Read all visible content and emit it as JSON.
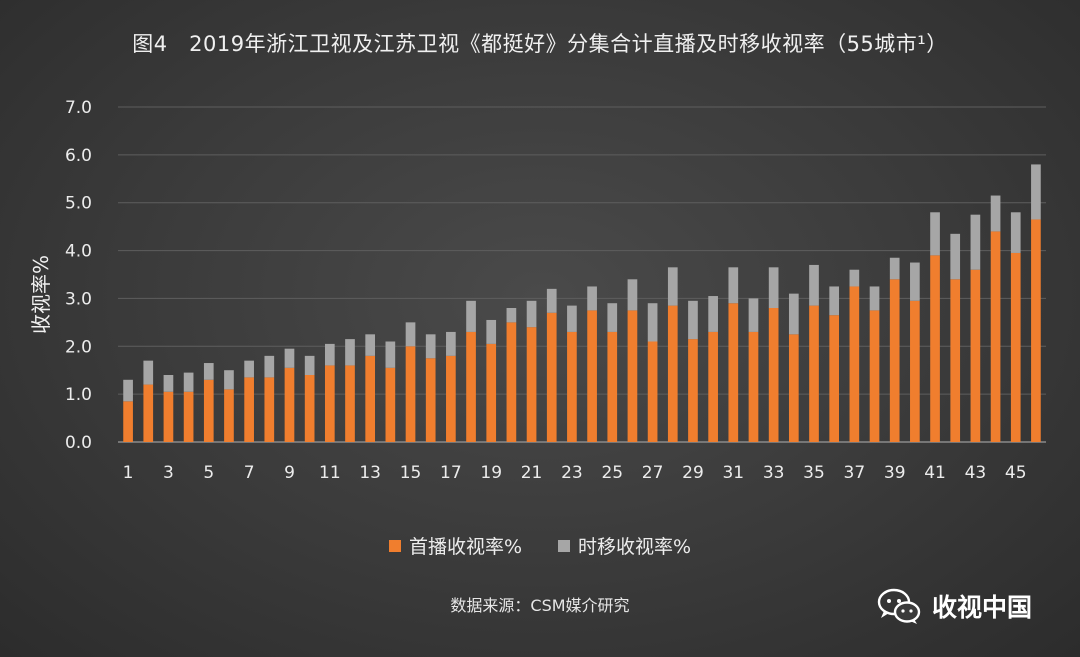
{
  "title": "图4　2019年浙江卫视及江苏卫视《都挺好》分集合计直播及时移收视率（55城市¹）",
  "source": "数据来源：CSM媒介研究",
  "watermark": "收视中国",
  "colors": {
    "live": "#f07e2e",
    "timeshift": "#a6a6a6",
    "grid": "#5e5e5e"
  },
  "chart_data": {
    "type": "bar",
    "stacked": true,
    "ylabel": "收视率%",
    "xlabel": "",
    "ylim": [
      0,
      7
    ],
    "yticks": [
      "0.0",
      "1.0",
      "2.0",
      "3.0",
      "4.0",
      "5.0",
      "6.0",
      "7.0"
    ],
    "xtick_labels": [
      "1",
      "3",
      "5",
      "7",
      "9",
      "11",
      "13",
      "15",
      "17",
      "19",
      "21",
      "23",
      "25",
      "27",
      "29",
      "31",
      "33",
      "35",
      "37",
      "39",
      "41",
      "43",
      "45"
    ],
    "grid": true,
    "legend_position": "bottom",
    "categories": [
      1,
      2,
      3,
      4,
      5,
      6,
      7,
      8,
      9,
      10,
      11,
      12,
      13,
      14,
      15,
      16,
      17,
      18,
      19,
      20,
      21,
      22,
      23,
      24,
      25,
      26,
      27,
      28,
      29,
      30,
      31,
      32,
      33,
      34,
      35,
      36,
      37,
      38,
      39,
      40,
      41,
      42,
      43,
      44,
      45,
      46
    ],
    "series": [
      {
        "name": "首播收视率%",
        "values": [
          0.85,
          1.2,
          1.05,
          1.05,
          1.3,
          1.1,
          1.35,
          1.35,
          1.55,
          1.4,
          1.6,
          1.6,
          1.8,
          1.55,
          2.0,
          1.75,
          1.8,
          2.3,
          2.05,
          2.5,
          2.4,
          2.7,
          2.3,
          2.75,
          2.3,
          2.75,
          2.1,
          2.85,
          2.15,
          2.3,
          2.9,
          2.3,
          2.8,
          2.25,
          2.85,
          2.65,
          3.25,
          2.75,
          3.4,
          2.95,
          3.9,
          3.4,
          3.6,
          4.4,
          3.95,
          4.65
        ]
      },
      {
        "name": "时移收视率%",
        "values": [
          0.45,
          0.5,
          0.35,
          0.4,
          0.35,
          0.4,
          0.35,
          0.45,
          0.4,
          0.4,
          0.45,
          0.55,
          0.45,
          0.55,
          0.5,
          0.5,
          0.5,
          0.65,
          0.5,
          0.3,
          0.55,
          0.5,
          0.55,
          0.5,
          0.6,
          0.65,
          0.8,
          0.8,
          0.8,
          0.75,
          0.75,
          0.7,
          0.85,
          0.85,
          0.85,
          0.6,
          0.35,
          0.5,
          0.45,
          0.8,
          0.9,
          0.95,
          1.15,
          0.75,
          0.85,
          1.15
        ]
      }
    ]
  }
}
